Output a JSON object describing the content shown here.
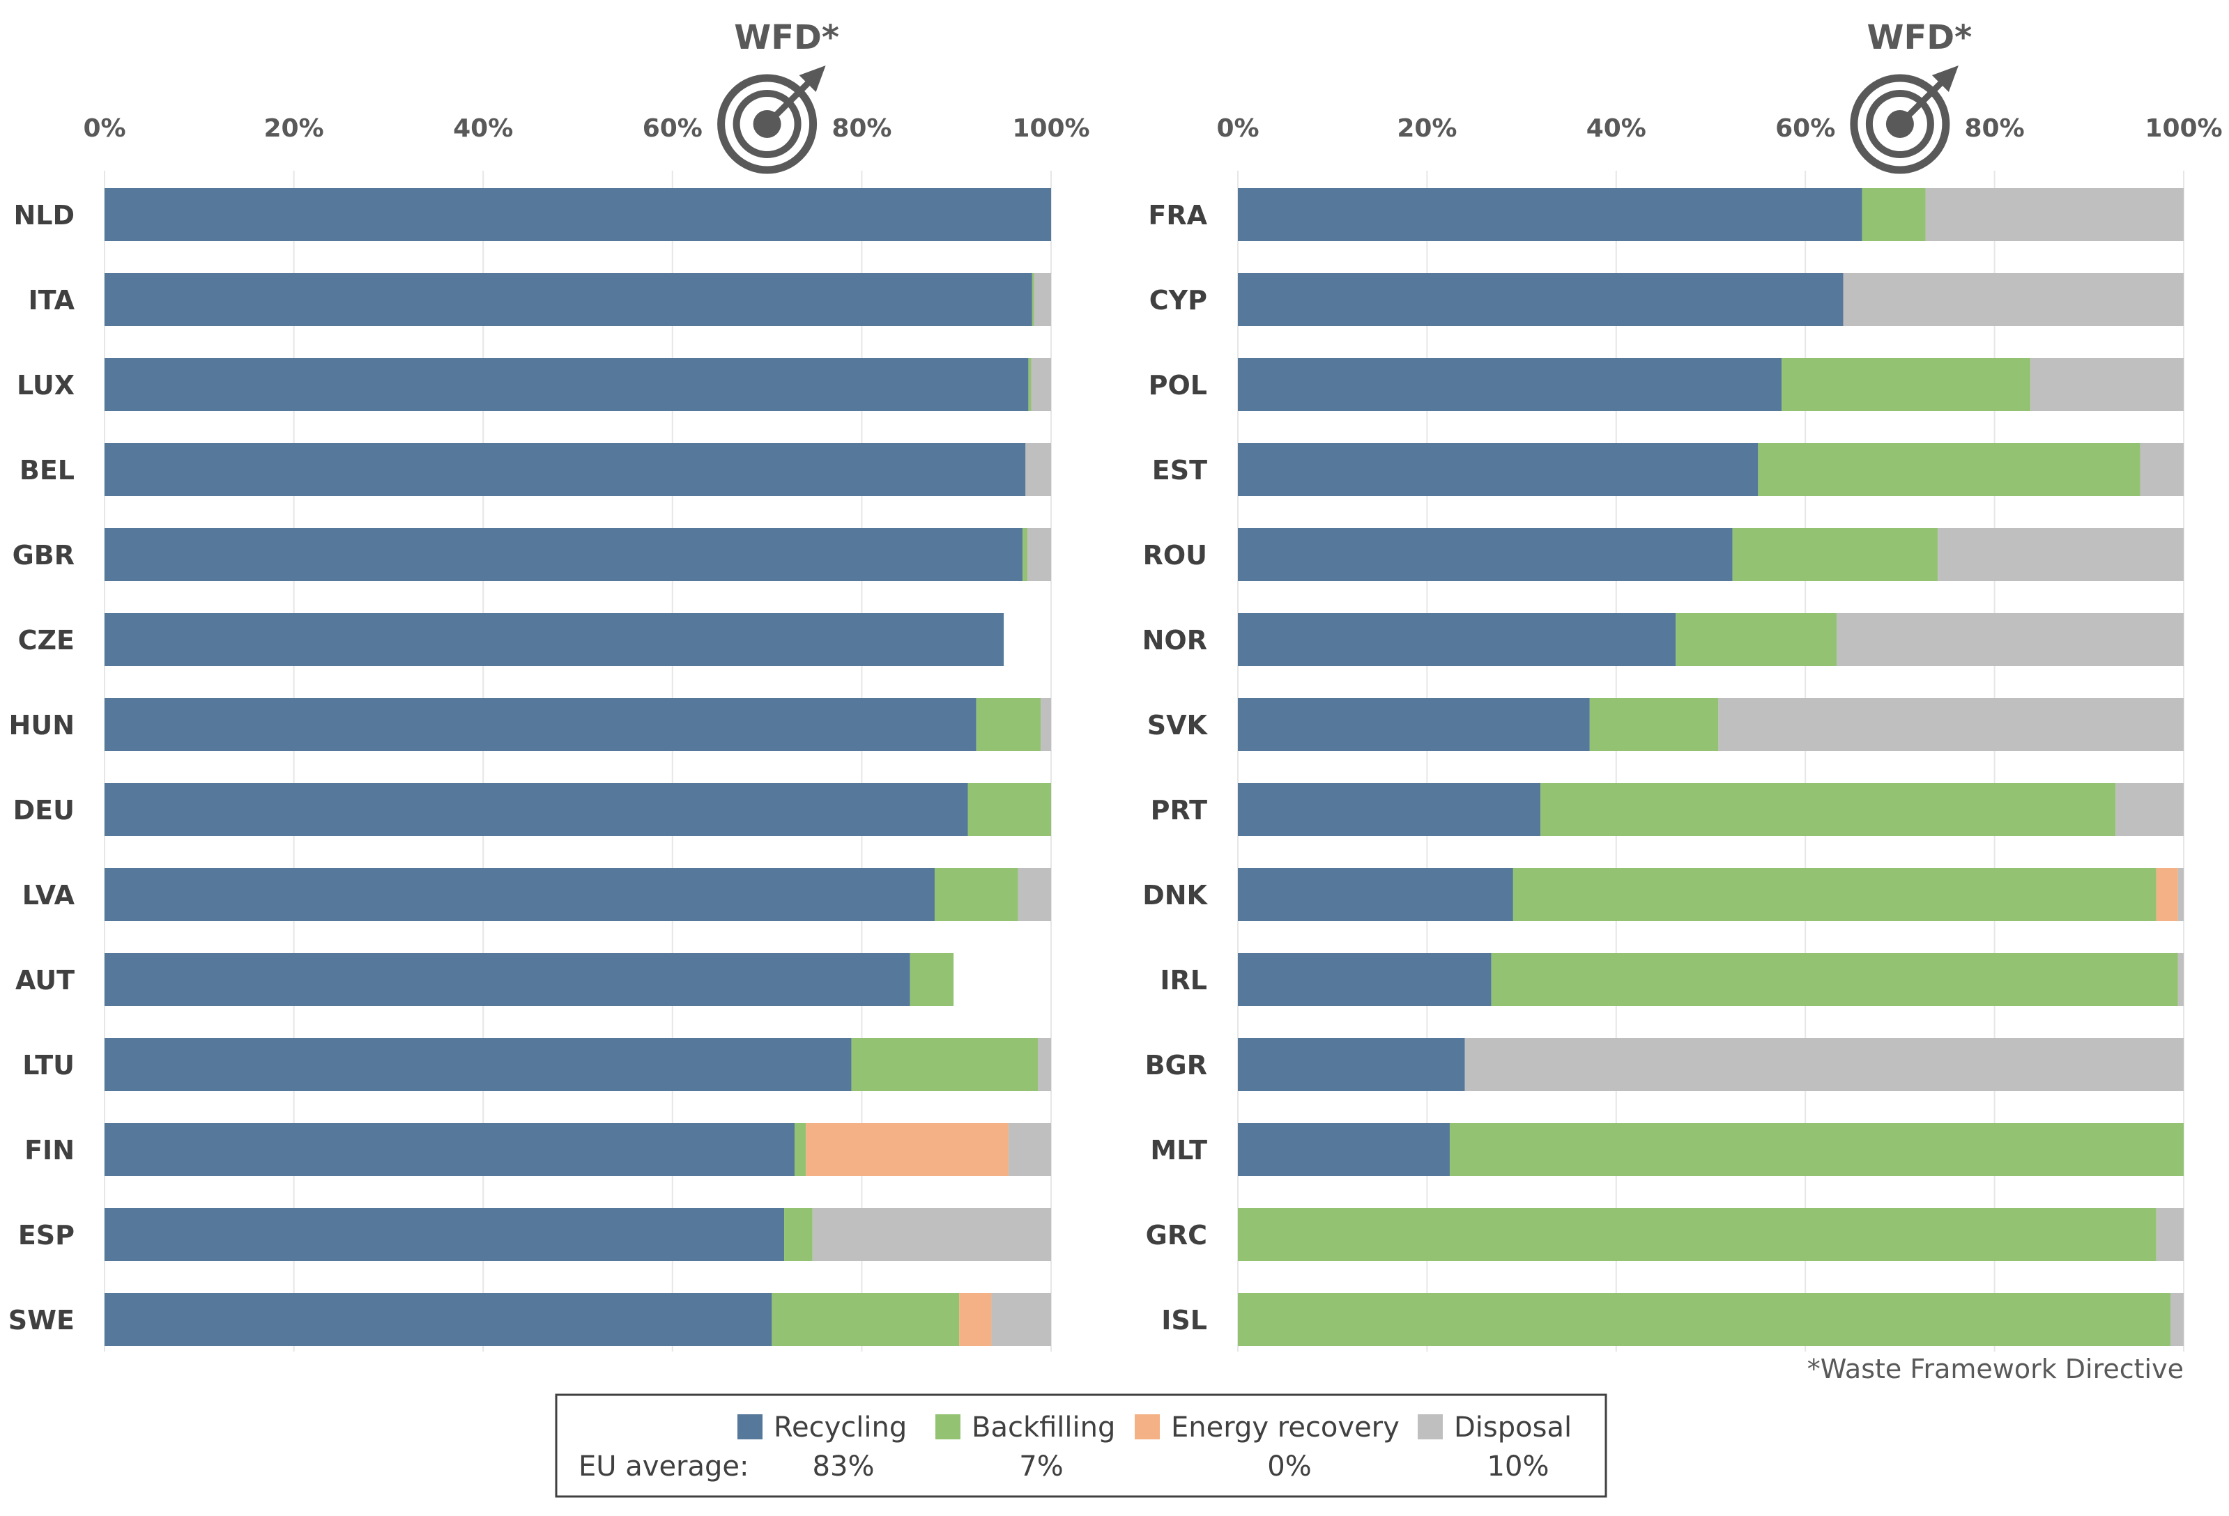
{
  "colors": {
    "recycling": "#56789b",
    "backfilling": "#93c372",
    "energy_recovery": "#f3b185",
    "disposal": "#bfbfbf",
    "grid": "#e6e6e6",
    "text": "#404040",
    "target": "#595959"
  },
  "chart_data": [
    {
      "type": "bar",
      "orientation": "horizontal",
      "stacked": true,
      "xlim": [
        0,
        100
      ],
      "x_ticks": [
        "0%",
        "20%",
        "40%",
        "60%",
        "80%",
        "100%"
      ],
      "target_label": "WFD*",
      "target_value": 70,
      "target_icon": "target-icon",
      "categories": [
        "NLD",
        "ITA",
        "LUX",
        "BEL",
        "GBR",
        "CZE",
        "HUN",
        "DEU",
        "LVA",
        "AUT",
        "LTU",
        "FIN",
        "ESP",
        "SWE"
      ],
      "series": [
        {
          "name": "Recycling",
          "key": "recycling",
          "values": [
            100,
            98,
            97.6,
            97.3,
            97,
            95,
            92.1,
            91.2,
            87.7,
            85.1,
            78.9,
            72.9,
            71.8,
            70.5
          ]
        },
        {
          "name": "Backfilling",
          "key": "backfilling",
          "values": [
            0,
            0.2,
            0.3,
            0,
            0.5,
            0,
            6.8,
            8.8,
            8.8,
            4.6,
            19.7,
            1.2,
            3,
            19.8
          ]
        },
        {
          "name": "Energy recovery",
          "key": "energy_recovery",
          "values": [
            0,
            0,
            0,
            0,
            0,
            0,
            0,
            0,
            0,
            0,
            0,
            21.4,
            0,
            3.4
          ]
        },
        {
          "name": "Disposal",
          "key": "disposal",
          "values": [
            0,
            1.8,
            2.1,
            2.7,
            2.5,
            0,
            1.1,
            0,
            3.5,
            0,
            1.4,
            4.5,
            25.2,
            6.3
          ]
        }
      ]
    },
    {
      "type": "bar",
      "orientation": "horizontal",
      "stacked": true,
      "xlim": [
        0,
        100
      ],
      "x_ticks": [
        "0%",
        "20%",
        "40%",
        "60%",
        "80%",
        "100%"
      ],
      "target_label": "WFD*",
      "target_value": 70,
      "target_icon": "target-icon",
      "categories": [
        "FRA",
        "CYP",
        "POL",
        "EST",
        "ROU",
        "NOR",
        "SVK",
        "PRT",
        "DNK",
        "IRL",
        "BGR",
        "MLT",
        "GRC",
        "ISL"
      ],
      "series": [
        {
          "name": "Recycling",
          "key": "recycling",
          "values": [
            66,
            64,
            57.5,
            55,
            52.3,
            46.3,
            37.2,
            32,
            29.1,
            26.8,
            24,
            22.4,
            0,
            0
          ]
        },
        {
          "name": "Backfilling",
          "key": "backfilling",
          "values": [
            6.7,
            0,
            26.3,
            40.4,
            21.7,
            17,
            13.6,
            60.8,
            68,
            72.6,
            0,
            77.6,
            97.1,
            98.6
          ]
        },
        {
          "name": "Energy recovery",
          "key": "energy_recovery",
          "values": [
            0,
            0,
            0,
            0,
            0,
            0,
            0,
            0,
            2.3,
            0,
            0,
            0,
            0,
            0
          ]
        },
        {
          "name": "Disposal",
          "key": "disposal",
          "values": [
            27.3,
            36,
            16.2,
            4.6,
            26,
            36.7,
            49.2,
            7.2,
            0.6,
            0.6,
            76,
            0,
            2.9,
            1.4
          ]
        }
      ]
    }
  ],
  "footnote": "*Waste Framework Directive",
  "legend": {
    "eu_average_label": "EU average:",
    "items": [
      {
        "key": "recycling",
        "label": "Recycling",
        "average": "83%"
      },
      {
        "key": "backfilling",
        "label": "Backfilling",
        "average": "7%"
      },
      {
        "key": "energy_recovery",
        "label": "Energy recovery",
        "average": "0%"
      },
      {
        "key": "disposal",
        "label": "Disposal",
        "average": "10%"
      }
    ]
  }
}
